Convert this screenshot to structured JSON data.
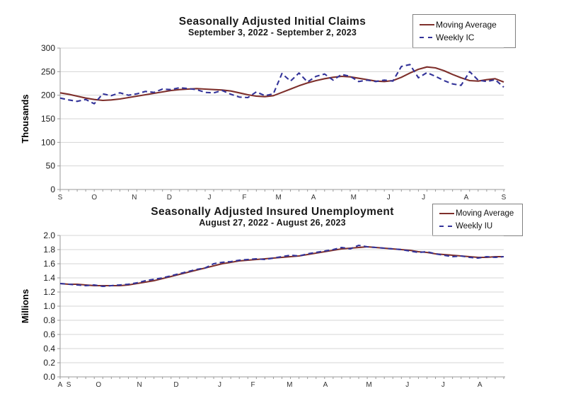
{
  "colors": {
    "moving_average": "#7e2f2b",
    "weekly": "#333399",
    "gridline": "#d4d4d4",
    "axis": "#9a9a9a",
    "background": "#ffffff"
  },
  "chart_data": [
    {
      "type": "line",
      "title": "Seasonally Adjusted Initial Claims",
      "subtitle": "September 3, 2022 - September 2, 2023",
      "ylabel": "Thousands",
      "ylim": [
        0,
        300
      ],
      "grid": "horizontal",
      "legend_position": "top-right",
      "yticks": [
        {
          "v": 0,
          "label": "0"
        },
        {
          "v": 50,
          "label": "50"
        },
        {
          "v": 100,
          "label": "100"
        },
        {
          "v": 150,
          "label": "150"
        },
        {
          "v": 200,
          "label": "200"
        },
        {
          "v": 250,
          "label": "250"
        },
        {
          "v": 300,
          "label": "300"
        }
      ],
      "month_labels": [
        {
          "w": 0,
          "label": "S"
        },
        {
          "w": 4,
          "label": "O"
        },
        {
          "w": 8.7,
          "label": "N"
        },
        {
          "w": 12.8,
          "label": "D"
        },
        {
          "w": 17.5,
          "label": "J"
        },
        {
          "w": 21.6,
          "label": "F"
        },
        {
          "w": 25.6,
          "label": "M"
        },
        {
          "w": 29.7,
          "label": "A"
        },
        {
          "w": 34.4,
          "label": "M"
        },
        {
          "w": 38.5,
          "label": "J"
        },
        {
          "w": 42.6,
          "label": "J"
        },
        {
          "w": 47.6,
          "label": "A"
        },
        {
          "w": 52,
          "label": "S"
        }
      ],
      "legend": [
        {
          "name": "Moving Average",
          "style": "solid",
          "color": "#7e2f2b"
        },
        {
          "name": "Weekly IC",
          "style": "dashed",
          "color": "#333399"
        }
      ],
      "series": [
        {
          "name": "Moving Average",
          "style": "solid",
          "color": "#7e2f2b",
          "values": [
            205,
            202,
            198,
            194,
            191,
            189,
            190,
            192,
            195,
            198,
            201,
            204,
            207,
            210,
            212,
            213,
            214,
            213,
            212,
            211,
            209,
            205,
            201,
            198,
            197,
            199,
            206,
            213,
            220,
            226,
            231,
            235,
            238,
            240,
            239,
            236,
            233,
            230,
            229,
            231,
            238,
            247,
            255,
            260,
            258,
            252,
            244,
            237,
            231,
            230,
            233,
            235,
            228
          ]
        },
        {
          "name": "Weekly IC",
          "style": "dashed",
          "color": "#333399",
          "values": [
            194,
            190,
            187,
            191,
            182,
            203,
            199,
            205,
            200,
            203,
            208,
            206,
            213,
            212,
            216,
            214,
            212,
            206,
            205,
            210,
            202,
            196,
            195,
            207,
            199,
            203,
            246,
            230,
            247,
            228,
            240,
            245,
            232,
            244,
            240,
            229,
            232,
            229,
            232,
            230,
            261,
            265,
            237,
            248,
            240,
            231,
            224,
            221,
            250,
            232,
            229,
            233,
            217
          ]
        }
      ]
    },
    {
      "type": "line",
      "title": "Seasonally Adjusted Insured Unemployment",
      "subtitle": "August 27, 2022 - August 26, 2023",
      "ylabel": "Millions",
      "ylim": [
        0,
        2.0
      ],
      "grid": "horizontal",
      "legend_position": "top-right",
      "yticks": [
        {
          "v": 0,
          "label": "0.0"
        },
        {
          "v": 0.2,
          "label": "0.2"
        },
        {
          "v": 0.4,
          "label": "0.4"
        },
        {
          "v": 0.6,
          "label": "0.6"
        },
        {
          "v": 0.8,
          "label": "0.8"
        },
        {
          "v": 1.0,
          "label": "1.0"
        },
        {
          "v": 1.2,
          "label": "1.2"
        },
        {
          "v": 1.4,
          "label": "1.4"
        },
        {
          "v": 1.6,
          "label": "1.6"
        },
        {
          "v": 1.8,
          "label": "1.8"
        },
        {
          "v": 2.0,
          "label": "2.0"
        }
      ],
      "month_labels": [
        {
          "w": 0,
          "label": "A"
        },
        {
          "w": 1,
          "label": "S"
        },
        {
          "w": 4.5,
          "label": "O"
        },
        {
          "w": 9.3,
          "label": "N"
        },
        {
          "w": 13.6,
          "label": "D"
        },
        {
          "w": 18.7,
          "label": "J"
        },
        {
          "w": 22.6,
          "label": "F"
        },
        {
          "w": 26.9,
          "label": "M"
        },
        {
          "w": 31.1,
          "label": "A"
        },
        {
          "w": 36.2,
          "label": "M"
        },
        {
          "w": 40.7,
          "label": "J"
        },
        {
          "w": 44.9,
          "label": "J"
        },
        {
          "w": 49.2,
          "label": "A"
        }
      ],
      "legend": [
        {
          "name": "Moving Average",
          "style": "solid",
          "color": "#7e2f2b"
        },
        {
          "name": "Weekly IU",
          "style": "dashed",
          "color": "#333399"
        }
      ],
      "series": [
        {
          "name": "Moving Average",
          "style": "solid",
          "color": "#7e2f2b",
          "values": [
            1.32,
            1.31,
            1.31,
            1.3,
            1.29,
            1.29,
            1.29,
            1.29,
            1.3,
            1.32,
            1.34,
            1.36,
            1.39,
            1.42,
            1.45,
            1.48,
            1.51,
            1.54,
            1.57,
            1.6,
            1.62,
            1.64,
            1.65,
            1.66,
            1.67,
            1.68,
            1.69,
            1.7,
            1.71,
            1.73,
            1.75,
            1.77,
            1.79,
            1.81,
            1.82,
            1.83,
            1.84,
            1.83,
            1.82,
            1.81,
            1.8,
            1.79,
            1.77,
            1.76,
            1.74,
            1.73,
            1.72,
            1.71,
            1.7,
            1.69,
            1.69,
            1.7,
            1.7
          ]
        },
        {
          "name": "Weekly IU",
          "style": "dashed",
          "color": "#333399",
          "values": [
            1.32,
            1.31,
            1.3,
            1.29,
            1.3,
            1.28,
            1.29,
            1.3,
            1.31,
            1.33,
            1.36,
            1.38,
            1.4,
            1.43,
            1.46,
            1.49,
            1.52,
            1.54,
            1.6,
            1.62,
            1.63,
            1.65,
            1.66,
            1.67,
            1.66,
            1.68,
            1.7,
            1.72,
            1.71,
            1.74,
            1.76,
            1.78,
            1.8,
            1.83,
            1.81,
            1.86,
            1.84,
            1.83,
            1.82,
            1.81,
            1.8,
            1.78,
            1.76,
            1.77,
            1.74,
            1.72,
            1.7,
            1.71,
            1.69,
            1.68,
            1.7,
            1.69,
            1.7
          ]
        }
      ]
    }
  ]
}
